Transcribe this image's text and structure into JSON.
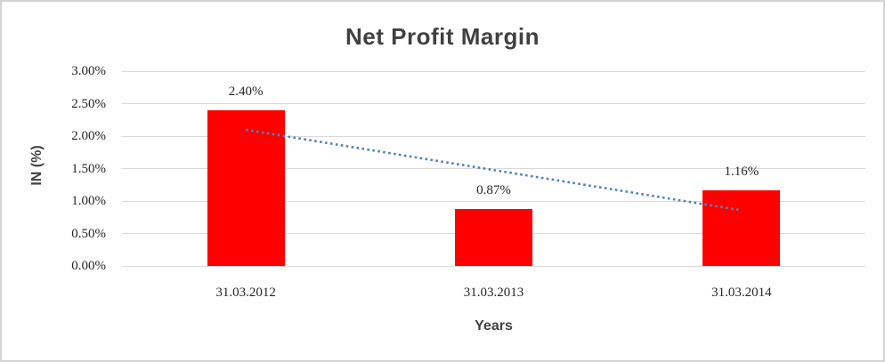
{
  "chart": {
    "title": "Net Profit Margin",
    "xlabel": "Years",
    "ylabel": "IN (%)"
  },
  "chart_data": {
    "type": "bar",
    "title": "Net Profit Margin",
    "xlabel": "Years",
    "ylabel": "IN (%)",
    "categories": [
      "31.03.2012",
      "31.03.2013",
      "31.03.2014"
    ],
    "values": [
      2.4,
      0.87,
      1.16
    ],
    "data_labels": [
      "2.40%",
      "0.87%",
      "1.16%"
    ],
    "ylim": [
      0,
      3
    ],
    "ytick_step": 0.5,
    "ytick_labels": [
      "0.00%",
      "0.50%",
      "1.00%",
      "1.50%",
      "2.00%",
      "2.50%",
      "3.00%"
    ],
    "grid": true,
    "legend": false,
    "bar_color": "#ff0000",
    "trendline": {
      "type": "linear",
      "style": "dotted",
      "color": "#4f81bd",
      "start_value": 2.097,
      "end_value": 0.857
    },
    "colors": {
      "grid": "#d9d9d9",
      "axis_title_text": "#404040",
      "title_text": "#404040",
      "tick_text": "#262626",
      "data_label_text": "#262626",
      "border": "#d4d4d4",
      "background": "#ffffff"
    }
  }
}
